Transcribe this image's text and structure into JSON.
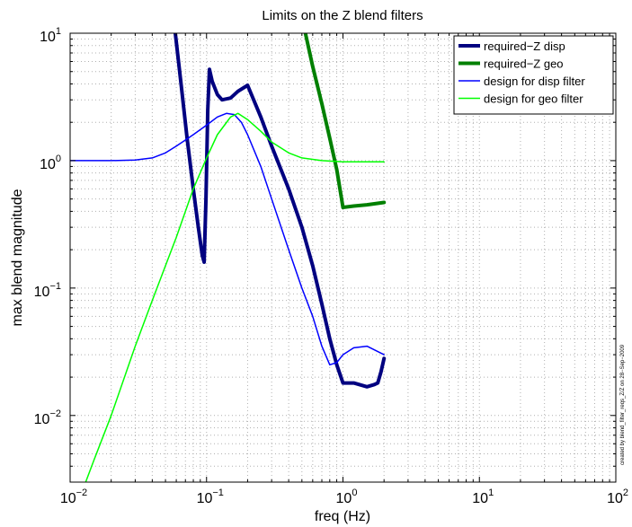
{
  "chart_data": {
    "type": "line",
    "title": "Limits on the Z blend filters",
    "xlabel": "freq (Hz)",
    "ylabel": "max blend magnitude",
    "xscale": "log",
    "yscale": "log",
    "xlim": [
      0.01,
      100
    ],
    "ylim": [
      0.003,
      10
    ],
    "grid": true,
    "legend_position": "top-right",
    "x_tick_labels": [
      {
        "base": "10",
        "exp": "−2",
        "value": 0.01
      },
      {
        "base": "10",
        "exp": "−1",
        "value": 0.1
      },
      {
        "base": "10",
        "exp": "0",
        "value": 1
      },
      {
        "base": "10",
        "exp": "1",
        "value": 10
      },
      {
        "base": "10",
        "exp": "2",
        "value": 100
      }
    ],
    "y_tick_labels": [
      {
        "base": "10",
        "exp": "−2",
        "value": 0.01
      },
      {
        "base": "10",
        "exp": "−1",
        "value": 0.1
      },
      {
        "base": "10",
        "exp": "0",
        "value": 1
      },
      {
        "base": "10",
        "exp": "1",
        "value": 10
      }
    ],
    "series": [
      {
        "name": "required−Z disp",
        "color": "#000080",
        "style": "thick",
        "points": [
          [
            0.059,
            10
          ],
          [
            0.065,
            4.0
          ],
          [
            0.072,
            1.5
          ],
          [
            0.08,
            0.6
          ],
          [
            0.087,
            0.3
          ],
          [
            0.093,
            0.18
          ],
          [
            0.096,
            0.16
          ],
          [
            0.099,
            0.5
          ],
          [
            0.102,
            2.5
          ],
          [
            0.105,
            5.2
          ],
          [
            0.11,
            4.2
          ],
          [
            0.12,
            3.3
          ],
          [
            0.13,
            3.0
          ],
          [
            0.15,
            3.1
          ],
          [
            0.17,
            3.5
          ],
          [
            0.2,
            3.9
          ],
          [
            0.25,
            2.2
          ],
          [
            0.3,
            1.3
          ],
          [
            0.4,
            0.6
          ],
          [
            0.5,
            0.3
          ],
          [
            0.6,
            0.15
          ],
          [
            0.7,
            0.075
          ],
          [
            0.8,
            0.04
          ],
          [
            0.9,
            0.025
          ],
          [
            1.0,
            0.018
          ],
          [
            1.2,
            0.018
          ],
          [
            1.5,
            0.0168
          ],
          [
            1.7,
            0.0175
          ],
          [
            1.8,
            0.018
          ],
          [
            1.9,
            0.022
          ],
          [
            2.0,
            0.028
          ]
        ]
      },
      {
        "name": "required−Z geo",
        "color": "#008000",
        "style": "thick",
        "points": [
          [
            0.53,
            10
          ],
          [
            0.6,
            5.5
          ],
          [
            0.7,
            2.8
          ],
          [
            0.8,
            1.5
          ],
          [
            0.9,
            0.85
          ],
          [
            1.0,
            0.43
          ],
          [
            1.2,
            0.44
          ],
          [
            1.5,
            0.45
          ],
          [
            2.0,
            0.47
          ]
        ]
      },
      {
        "name": "design for disp filter",
        "color": "#0000ff",
        "style": "thin",
        "points": [
          [
            0.01,
            1.0
          ],
          [
            0.02,
            1.0
          ],
          [
            0.03,
            1.01
          ],
          [
            0.04,
            1.05
          ],
          [
            0.05,
            1.15
          ],
          [
            0.06,
            1.3
          ],
          [
            0.07,
            1.45
          ],
          [
            0.08,
            1.6
          ],
          [
            0.1,
            1.9
          ],
          [
            0.12,
            2.2
          ],
          [
            0.14,
            2.35
          ],
          [
            0.16,
            2.3
          ],
          [
            0.18,
            2.0
          ],
          [
            0.2,
            1.6
          ],
          [
            0.25,
            0.9
          ],
          [
            0.3,
            0.5
          ],
          [
            0.4,
            0.2
          ],
          [
            0.5,
            0.1
          ],
          [
            0.6,
            0.06
          ],
          [
            0.7,
            0.035
          ],
          [
            0.8,
            0.025
          ],
          [
            0.9,
            0.026
          ],
          [
            1.0,
            0.03
          ],
          [
            1.2,
            0.034
          ],
          [
            1.5,
            0.035
          ],
          [
            2.0,
            0.03
          ]
        ]
      },
      {
        "name": "design for geo filter",
        "color": "#00ff00",
        "style": "thin",
        "points": [
          [
            0.013,
            0.003
          ],
          [
            0.015,
            0.0045
          ],
          [
            0.02,
            0.01
          ],
          [
            0.03,
            0.035
          ],
          [
            0.04,
            0.08
          ],
          [
            0.05,
            0.15
          ],
          [
            0.06,
            0.25
          ],
          [
            0.08,
            0.6
          ],
          [
            0.1,
            1.05
          ],
          [
            0.12,
            1.6
          ],
          [
            0.15,
            2.2
          ],
          [
            0.17,
            2.35
          ],
          [
            0.2,
            2.1
          ],
          [
            0.25,
            1.7
          ],
          [
            0.3,
            1.4
          ],
          [
            0.4,
            1.15
          ],
          [
            0.5,
            1.05
          ],
          [
            0.7,
            1.0
          ],
          [
            1.0,
            0.98
          ],
          [
            2.0,
            0.98
          ]
        ]
      }
    ],
    "side_note": "created by blend_filter_reqs_Z/Z  on 28−Sep−2009"
  }
}
